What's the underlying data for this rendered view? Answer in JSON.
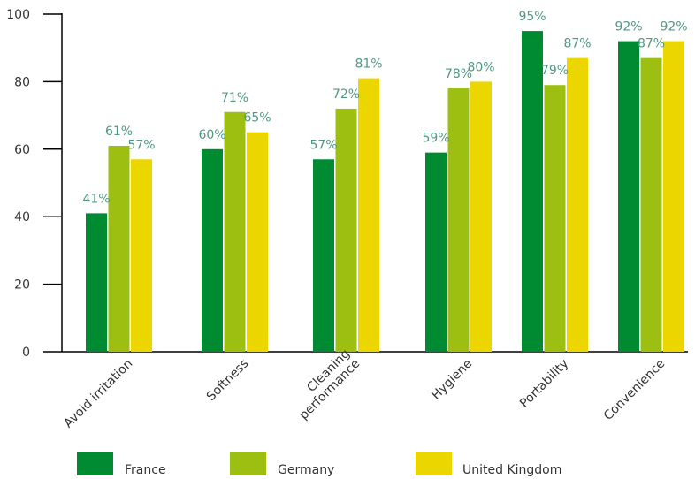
{
  "chart_data": {
    "type": "bar",
    "title": "",
    "xlabel": "",
    "ylabel": "",
    "ylim": [
      0,
      100
    ],
    "yticks": [
      0,
      20,
      40,
      60,
      80,
      100
    ],
    "categories": [
      {
        "lines": [
          "Avoid irritation"
        ]
      },
      {
        "lines": [
          "Softness"
        ]
      },
      {
        "lines": [
          "Cleaning",
          "performance"
        ]
      },
      {
        "lines": [
          "Hygiene"
        ]
      },
      {
        "lines": [
          "Portability"
        ]
      },
      {
        "lines": [
          "Convenience"
        ]
      }
    ],
    "series": [
      {
        "name": "France",
        "color": "#008a32",
        "values": [
          41,
          60,
          57,
          59,
          95,
          92
        ]
      },
      {
        "name": "Germany",
        "color": "#9cbf11",
        "values": [
          61,
          71,
          72,
          78,
          79,
          87
        ]
      },
      {
        "name": "United Kingdom",
        "color": "#ecd600",
        "values": [
          57,
          65,
          81,
          80,
          87,
          92
        ]
      }
    ],
    "value_suffix": "%",
    "legend_position": "bottom",
    "grid": false
  }
}
